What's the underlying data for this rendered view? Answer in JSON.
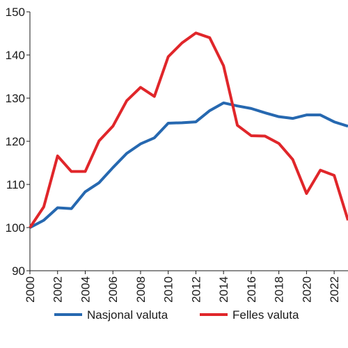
{
  "chart_data": {
    "type": "line",
    "title": "",
    "xlabel": "",
    "ylabel": "",
    "x": [
      2000,
      2001,
      2002,
      2003,
      2004,
      2005,
      2006,
      2007,
      2008,
      2009,
      2010,
      2011,
      2012,
      2013,
      2014,
      2015,
      2016,
      2017,
      2018,
      2019,
      2020,
      2021,
      2022,
      2023
    ],
    "xlim": [
      2000,
      2023
    ],
    "ylim": [
      90,
      150
    ],
    "x_ticks": [
      "2000",
      "2002",
      "2004",
      "2006",
      "2008",
      "2010",
      "2012",
      "2014",
      "2016",
      "2018",
      "2020",
      "2022"
    ],
    "y_ticks": [
      "90",
      "100",
      "110",
      "120",
      "130",
      "140",
      "150"
    ],
    "grid": false,
    "legend_position": "bottom",
    "series": [
      {
        "name": "Nasjonal valuta",
        "color": "#2668b0",
        "values": [
          100,
          101.7,
          104.6,
          104.4,
          108.3,
          110.4,
          113.9,
          117.2,
          119.4,
          120.8,
          124.2,
          124.3,
          124.5,
          127.1,
          128.9,
          128.2,
          127.6,
          126.6,
          125.7,
          125.3,
          126.1,
          126.1,
          124.5,
          123.5
        ]
      },
      {
        "name": "Felles valuta",
        "color": "#e0262a",
        "values": [
          100,
          104.8,
          116.6,
          113,
          113,
          120.1,
          123.5,
          129.4,
          132.5,
          130.4,
          139.6,
          142.8,
          145.1,
          144,
          137.5,
          123.7,
          121.3,
          121.2,
          119.5,
          115.8,
          107.9,
          113.3,
          112.1,
          101.7
        ]
      }
    ]
  }
}
